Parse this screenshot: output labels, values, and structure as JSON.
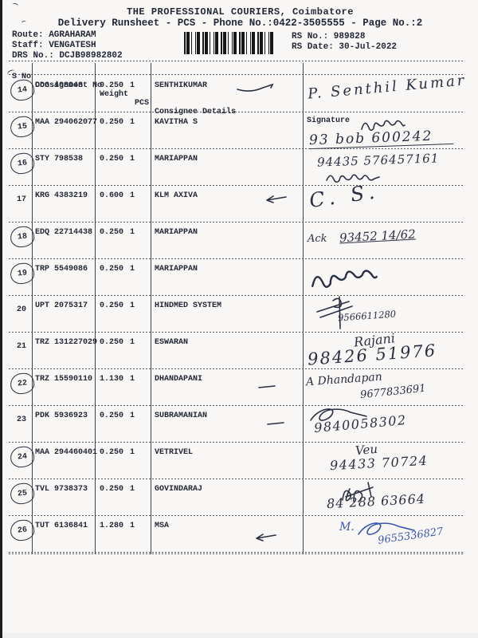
{
  "header": {
    "title": "THE PROFESSIONAL COURIERS, Coimbatore",
    "subtitle": "Delivery Runsheet - PCS - Phone No.:0422-3505555 - Page No.:2",
    "route": "Route: AGRAHARAM",
    "staff": "Staff: VENGATESH",
    "drs_no": "DRS No.: DCJB98982802",
    "rs_no": "RS No.: 989828",
    "rs_date": "RS Date: 30-Jul-2022",
    "barcode": "barcode"
  },
  "colors": {
    "paper": "#f8f7f5",
    "printed_ink": "#232836",
    "pen_dark": "#2a3042",
    "pen_blue": "#3b57ad"
  },
  "table": {
    "columns": [
      "S No",
      "Consignment No",
      "Weight",
      "PCS",
      "Consignee Details",
      "Signature"
    ],
    "rows": [
      {
        "s_no": "14",
        "circled": true,
        "consignment_no": "DDG 408048",
        "weight": "0.250",
        "pcs": "1",
        "consignee": "SENTHIKUMAR",
        "mark": "tick",
        "signature": {
          "ink": "dark",
          "name": "P. Senthil Kumar",
          "number": "",
          "scribble": ""
        }
      },
      {
        "s_no": "15",
        "circled": true,
        "consignment_no": "MAA 294062077",
        "weight": "0.250",
        "pcs": "1",
        "consignee": "KAVITHA S",
        "mark": "",
        "signature": {
          "ink": "dark",
          "name": "",
          "number": "93 bob 600242",
          "scribble": "tamil"
        }
      },
      {
        "s_no": "16",
        "circled": true,
        "consignment_no": "STY 798538",
        "weight": "0.250",
        "pcs": "1",
        "consignee": "MARIAPPAN",
        "mark": "",
        "signature": {
          "ink": "dark",
          "name": "",
          "number": "94435 576457161",
          "scribble": "tamil2"
        }
      },
      {
        "s_no": "17",
        "circled": false,
        "consignment_no": "KRG 4383219",
        "weight": "0.600",
        "pcs": "1",
        "consignee": "KLM AXIVA",
        "mark": "arrow",
        "signature": {
          "ink": "dark",
          "name": "C. S.",
          "number": "",
          "scribble": ""
        }
      },
      {
        "s_no": "18",
        "circled": true,
        "consignment_no": "EDQ 22714438",
        "weight": "0.250",
        "pcs": "1",
        "consignee": "MARIAPPAN",
        "mark": "",
        "signature": {
          "ink": "dark",
          "name": "Ack",
          "number": "93452 14/62",
          "scribble": ""
        }
      },
      {
        "s_no": "19",
        "circled": true,
        "consignment_no": "TRP 5549086",
        "weight": "0.250",
        "pcs": "1",
        "consignee": "MARIAPPAN",
        "mark": "",
        "signature": {
          "ink": "dark",
          "name": "",
          "number": "",
          "scribble": "tamil"
        }
      },
      {
        "s_no": "20",
        "circled": false,
        "consignment_no": "UPT 2075317",
        "weight": "0.250",
        "pcs": "1",
        "consignee": "HINDMED SYSTEM",
        "mark": "",
        "signature": {
          "ink": "dark",
          "name": "",
          "number": "9566611280",
          "scribble": "cross"
        }
      },
      {
        "s_no": "21",
        "circled": false,
        "consignment_no": "TRZ 131227029",
        "weight": "0.250",
        "pcs": "1",
        "consignee": "ESWARAN",
        "mark": "",
        "signature": {
          "ink": "dark",
          "name": "Rajani",
          "number": "98426 51976",
          "scribble": ""
        }
      },
      {
        "s_no": "22",
        "circled": true,
        "consignment_no": "TRZ 15590110",
        "weight": "1.130",
        "pcs": "1",
        "consignee": "DHANDAPANI",
        "mark": "dash",
        "signature": {
          "ink": "dark",
          "name": "A Dhandapan",
          "number": "9677833691",
          "scribble": ""
        }
      },
      {
        "s_no": "23",
        "circled": false,
        "consignment_no": "PDK 5936923",
        "weight": "0.250",
        "pcs": "1",
        "consignee": "SUBRAMANIAN",
        "mark": "dash",
        "signature": {
          "ink": "dark",
          "name": "",
          "number": "9840058302",
          "scribble": "loop"
        }
      },
      {
        "s_no": "24",
        "circled": true,
        "consignment_no": "MAA 294460401",
        "weight": "0.250",
        "pcs": "1",
        "consignee": "VETRIVEL",
        "mark": "",
        "signature": {
          "ink": "dark",
          "name": "Veu",
          "number": "94433 70724",
          "scribble": ""
        }
      },
      {
        "s_no": "25",
        "circled": true,
        "consignment_no": "TVL 9738373",
        "weight": "0.250",
        "pcs": "1",
        "consignee": "GOVINDARAJ",
        "mark": "",
        "signature": {
          "ink": "dark",
          "name": "",
          "number": "84 288 63664",
          "scribble": "knot"
        }
      },
      {
        "s_no": "26",
        "circled": true,
        "consignment_no": "TUT 6136841",
        "weight": "1.280",
        "pcs": "1",
        "consignee": "MSA",
        "mark": "arrow",
        "signature": {
          "ink": "blue",
          "name": "M.",
          "number": "9655336827",
          "scribble": "loop"
        }
      }
    ]
  }
}
